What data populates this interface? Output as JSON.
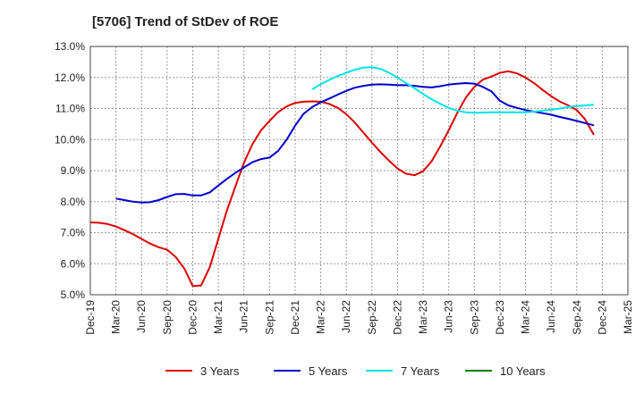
{
  "chart_data": {
    "type": "line",
    "title": "[5706]  Trend of StDev of ROE",
    "xlabel": "",
    "ylabel": "",
    "ylim": [
      5.0,
      13.0
    ],
    "yticks": [
      "5.0%",
      "6.0%",
      "7.0%",
      "8.0%",
      "9.0%",
      "10.0%",
      "11.0%",
      "12.0%",
      "13.0%"
    ],
    "categories": [
      "Dec-19",
      "Mar-20",
      "Jun-20",
      "Sep-20",
      "Dec-20",
      "Mar-21",
      "Jun-21",
      "Sep-21",
      "Dec-21",
      "Mar-22",
      "Jun-22",
      "Sep-22",
      "Dec-22",
      "Mar-23",
      "Jun-23",
      "Sep-23",
      "Dec-23",
      "Mar-24",
      "Jun-24",
      "Sep-24",
      "Dec-24",
      "Mar-25"
    ],
    "grid": true,
    "legend_position": "bottom",
    "series": [
      {
        "name": "3 Years",
        "color": "#dd0000",
        "points": [
          [
            0,
            7.33
          ],
          [
            0.33,
            7.32
          ],
          [
            0.67,
            7.28
          ],
          [
            1,
            7.2
          ],
          [
            1.33,
            7.08
          ],
          [
            1.67,
            6.95
          ],
          [
            2,
            6.8
          ],
          [
            2.33,
            6.65
          ],
          [
            2.67,
            6.53
          ],
          [
            3,
            6.45
          ],
          [
            3.33,
            6.22
          ],
          [
            3.67,
            5.85
          ],
          [
            4,
            5.28
          ],
          [
            4.33,
            5.3
          ],
          [
            4.67,
            5.9
          ],
          [
            5,
            6.8
          ],
          [
            5.33,
            7.7
          ],
          [
            5.67,
            8.5
          ],
          [
            6,
            9.25
          ],
          [
            6.33,
            9.85
          ],
          [
            6.67,
            10.3
          ],
          [
            7,
            10.6
          ],
          [
            7.33,
            10.88
          ],
          [
            7.67,
            11.07
          ],
          [
            8,
            11.18
          ],
          [
            8.33,
            11.22
          ],
          [
            8.67,
            11.23
          ],
          [
            9,
            11.22
          ],
          [
            9.33,
            11.15
          ],
          [
            9.67,
            11.02
          ],
          [
            10,
            10.82
          ],
          [
            10.33,
            10.55
          ],
          [
            10.67,
            10.22
          ],
          [
            11,
            9.9
          ],
          [
            11.33,
            9.6
          ],
          [
            11.67,
            9.32
          ],
          [
            12,
            9.07
          ],
          [
            12.33,
            8.9
          ],
          [
            12.67,
            8.85
          ],
          [
            13,
            8.98
          ],
          [
            13.33,
            9.3
          ],
          [
            13.67,
            9.78
          ],
          [
            14,
            10.3
          ],
          [
            14.33,
            10.85
          ],
          [
            14.67,
            11.35
          ],
          [
            15,
            11.7
          ],
          [
            15.33,
            11.93
          ],
          [
            15.67,
            12.03
          ],
          [
            16,
            12.15
          ],
          [
            16.33,
            12.2
          ],
          [
            16.67,
            12.13
          ],
          [
            17,
            12.0
          ],
          [
            17.33,
            11.82
          ],
          [
            17.67,
            11.6
          ],
          [
            18,
            11.4
          ],
          [
            18.33,
            11.23
          ],
          [
            18.67,
            11.1
          ],
          [
            19,
            10.95
          ],
          [
            19.33,
            10.65
          ],
          [
            19.67,
            10.15
          ]
        ]
      },
      {
        "name": "5 Years",
        "color": "#0000cc",
        "points": [
          [
            1,
            8.1
          ],
          [
            1.33,
            8.05
          ],
          [
            1.67,
            8.0
          ],
          [
            2,
            7.97
          ],
          [
            2.33,
            7.98
          ],
          [
            2.67,
            8.05
          ],
          [
            3,
            8.15
          ],
          [
            3.33,
            8.24
          ],
          [
            3.67,
            8.25
          ],
          [
            4,
            8.2
          ],
          [
            4.33,
            8.2
          ],
          [
            4.67,
            8.3
          ],
          [
            5,
            8.52
          ],
          [
            5.33,
            8.73
          ],
          [
            5.67,
            8.93
          ],
          [
            6,
            9.1
          ],
          [
            6.33,
            9.27
          ],
          [
            6.67,
            9.37
          ],
          [
            7,
            9.42
          ],
          [
            7.33,
            9.63
          ],
          [
            7.67,
            10.0
          ],
          [
            8,
            10.45
          ],
          [
            8.33,
            10.83
          ],
          [
            8.67,
            11.05
          ],
          [
            9,
            11.2
          ],
          [
            9.33,
            11.32
          ],
          [
            9.67,
            11.45
          ],
          [
            10,
            11.57
          ],
          [
            10.33,
            11.67
          ],
          [
            10.67,
            11.73
          ],
          [
            11,
            11.77
          ],
          [
            11.33,
            11.78
          ],
          [
            11.67,
            11.77
          ],
          [
            12,
            11.75
          ],
          [
            12.33,
            11.75
          ],
          [
            12.67,
            11.73
          ],
          [
            13,
            11.7
          ],
          [
            13.33,
            11.68
          ],
          [
            13.67,
            11.72
          ],
          [
            14,
            11.77
          ],
          [
            14.33,
            11.8
          ],
          [
            14.67,
            11.82
          ],
          [
            15,
            11.8
          ],
          [
            15.33,
            11.7
          ],
          [
            15.67,
            11.55
          ],
          [
            16,
            11.25
          ],
          [
            16.33,
            11.1
          ],
          [
            16.67,
            11.02
          ],
          [
            17,
            10.95
          ],
          [
            17.33,
            10.9
          ],
          [
            17.67,
            10.85
          ],
          [
            18,
            10.8
          ],
          [
            18.33,
            10.73
          ],
          [
            18.67,
            10.67
          ],
          [
            19,
            10.6
          ],
          [
            19.33,
            10.53
          ],
          [
            19.67,
            10.46
          ]
        ]
      },
      {
        "name": "7 Years",
        "color": "#00e5e5",
        "points": [
          [
            8.67,
            11.62
          ],
          [
            9,
            11.78
          ],
          [
            9.33,
            11.92
          ],
          [
            9.67,
            12.05
          ],
          [
            10,
            12.15
          ],
          [
            10.33,
            12.25
          ],
          [
            10.67,
            12.32
          ],
          [
            11,
            12.33
          ],
          [
            11.33,
            12.28
          ],
          [
            11.67,
            12.15
          ],
          [
            12,
            12.0
          ],
          [
            12.33,
            11.82
          ],
          [
            12.67,
            11.65
          ],
          [
            13,
            11.47
          ],
          [
            13.33,
            11.3
          ],
          [
            13.67,
            11.15
          ],
          [
            14,
            11.02
          ],
          [
            14.33,
            10.93
          ],
          [
            14.67,
            10.88
          ],
          [
            15,
            10.86
          ],
          [
            15.33,
            10.87
          ],
          [
            15.67,
            10.88
          ],
          [
            16,
            10.88
          ],
          [
            16.33,
            10.88
          ],
          [
            16.67,
            10.88
          ],
          [
            17,
            10.88
          ],
          [
            17.33,
            10.9
          ],
          [
            17.67,
            10.93
          ],
          [
            18,
            10.96
          ],
          [
            18.33,
            11.0
          ],
          [
            18.67,
            11.05
          ],
          [
            19,
            11.08
          ],
          [
            19.33,
            11.1
          ],
          [
            19.67,
            11.12
          ]
        ]
      },
      {
        "name": "10 Years",
        "color": "#008000",
        "points": []
      }
    ]
  }
}
